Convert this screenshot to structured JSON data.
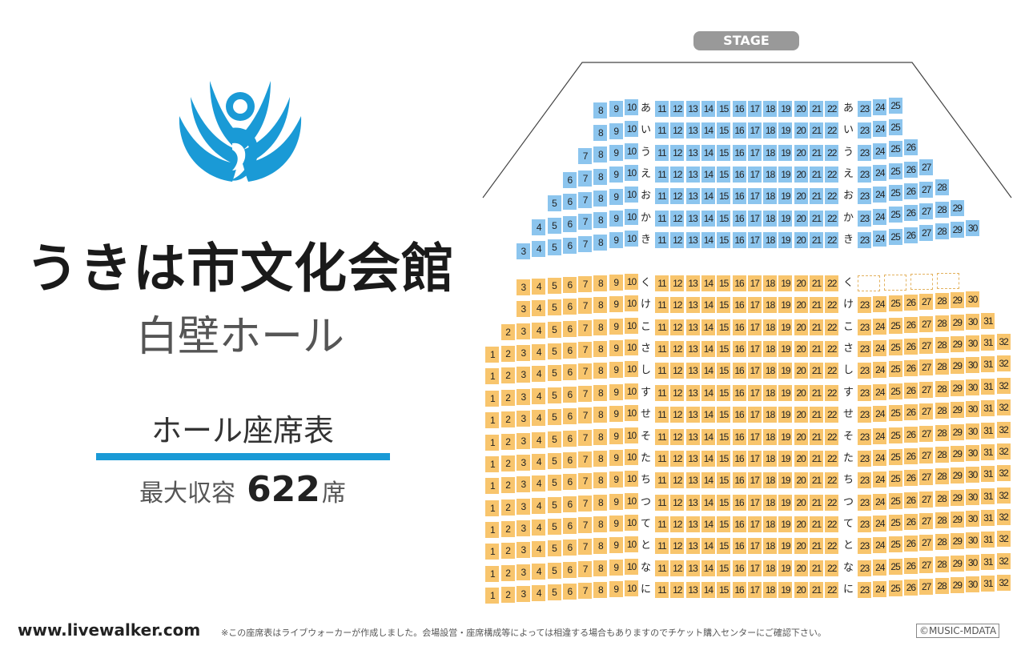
{
  "venue": {
    "name": "うきは市文化会館",
    "hall": "白壁ホール"
  },
  "chart_label": "ホール座席表",
  "capacity": {
    "label": "最大収容",
    "value": "622",
    "unit": "席"
  },
  "stage_label": "STAGE",
  "colors": {
    "front_block": "#8cc5ee",
    "rear_block": "#f8c56d",
    "accent": "#1a9ad6",
    "logo": "#1a9ad6"
  },
  "logo_icon": "winged-figure-logo-icon",
  "rows": [
    {
      "label": "あ",
      "block": "front",
      "left": [
        8,
        10
      ],
      "center": [
        11,
        22
      ],
      "right": [
        23,
        25
      ]
    },
    {
      "label": "い",
      "block": "front",
      "left": [
        8,
        10
      ],
      "center": [
        11,
        22
      ],
      "right": [
        23,
        25
      ]
    },
    {
      "label": "う",
      "block": "front",
      "left": [
        7,
        10
      ],
      "center": [
        11,
        22
      ],
      "right": [
        23,
        26
      ]
    },
    {
      "label": "え",
      "block": "front",
      "left": [
        6,
        10
      ],
      "center": [
        11,
        22
      ],
      "right": [
        23,
        27
      ]
    },
    {
      "label": "お",
      "block": "front",
      "left": [
        5,
        10
      ],
      "center": [
        11,
        22
      ],
      "right": [
        23,
        28
      ]
    },
    {
      "label": "か",
      "block": "front",
      "left": [
        4,
        10
      ],
      "center": [
        11,
        22
      ],
      "right": [
        23,
        29
      ]
    },
    {
      "label": "き",
      "block": "front",
      "left": [
        3,
        10
      ],
      "center": [
        11,
        22
      ],
      "right": [
        23,
        30
      ]
    },
    {
      "label": "く",
      "block": "rear",
      "left": [
        3,
        10
      ],
      "center": [
        11,
        22
      ],
      "right": [],
      "empty_right": 4
    },
    {
      "label": "け",
      "block": "rear",
      "left": [
        3,
        10
      ],
      "center": [
        11,
        22
      ],
      "right": [
        23,
        30
      ]
    },
    {
      "label": "こ",
      "block": "rear",
      "left": [
        2,
        10
      ],
      "center": [
        11,
        22
      ],
      "right": [
        23,
        31
      ]
    },
    {
      "label": "さ",
      "block": "rear",
      "left": [
        1,
        10
      ],
      "center": [
        11,
        22
      ],
      "right": [
        23,
        32
      ]
    },
    {
      "label": "し",
      "block": "rear",
      "left": [
        1,
        10
      ],
      "center": [
        11,
        22
      ],
      "right": [
        23,
        32
      ]
    },
    {
      "label": "す",
      "block": "rear",
      "left": [
        1,
        10
      ],
      "center": [
        11,
        22
      ],
      "right": [
        23,
        32
      ]
    },
    {
      "label": "せ",
      "block": "rear",
      "left": [
        1,
        10
      ],
      "center": [
        11,
        22
      ],
      "right": [
        23,
        32
      ]
    },
    {
      "label": "そ",
      "block": "rear",
      "left": [
        1,
        10
      ],
      "center": [
        11,
        22
      ],
      "right": [
        23,
        32
      ]
    },
    {
      "label": "た",
      "block": "rear",
      "left": [
        1,
        10
      ],
      "center": [
        11,
        22
      ],
      "right": [
        23,
        32
      ]
    },
    {
      "label": "ち",
      "block": "rear",
      "left": [
        1,
        10
      ],
      "center": [
        11,
        22
      ],
      "right": [
        23,
        32
      ]
    },
    {
      "label": "つ",
      "block": "rear",
      "left": [
        1,
        10
      ],
      "center": [
        11,
        22
      ],
      "right": [
        23,
        32
      ]
    },
    {
      "label": "て",
      "block": "rear",
      "left": [
        1,
        10
      ],
      "center": [
        11,
        22
      ],
      "right": [
        23,
        32
      ]
    },
    {
      "label": "と",
      "block": "rear",
      "left": [
        1,
        10
      ],
      "center": [
        11,
        22
      ],
      "right": [
        23,
        32
      ]
    },
    {
      "label": "な",
      "block": "rear",
      "left": [
        1,
        10
      ],
      "center": [
        11,
        22
      ],
      "right": [
        23,
        32
      ]
    },
    {
      "label": "に",
      "block": "rear",
      "left": [
        1,
        10
      ],
      "center": [
        11,
        22
      ],
      "right": [
        23,
        32
      ]
    }
  ],
  "footer": {
    "site": "www.livewalker.com",
    "note": "※この座席表はライブウォーカーが作成しました。会場設営・座席構成等によっては相違する場合もありますのでチケット購入センターにご確認下さい。",
    "copyright": "©MUSIC-MDATA"
  }
}
